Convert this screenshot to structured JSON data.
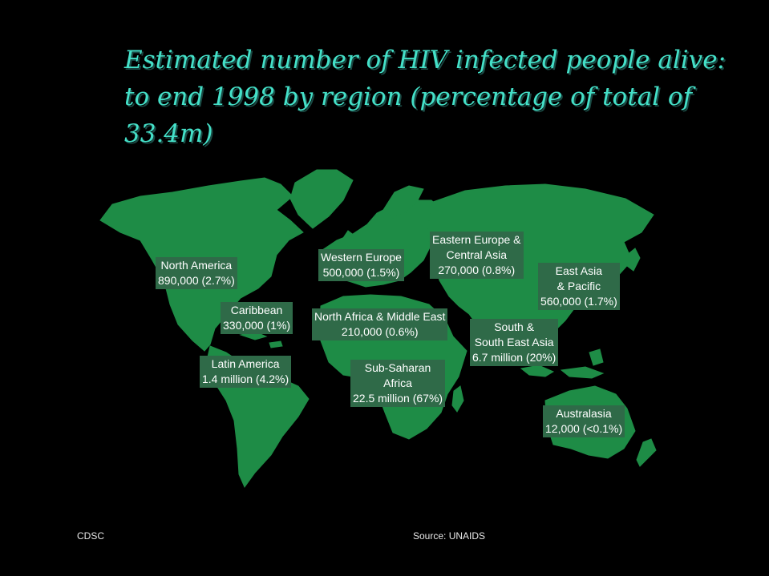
{
  "title": {
    "line1": "Estimated number of HIV infected people alive:",
    "line2": "to end 1998 by region (percentage of total of",
    "line3": "33.4m)"
  },
  "colors": {
    "land": "#1e8c46",
    "title": "#44e0c8",
    "label_bg": "#2f6a48",
    "background": "#000000"
  },
  "regions": {
    "north_america": {
      "name": "North America",
      "value": "890,000 (2.7%)"
    },
    "caribbean": {
      "name": "Caribbean",
      "value": "330,000 (1%)"
    },
    "latin_america": {
      "name": "Latin America",
      "value": "1.4 million (4.2%)"
    },
    "western_europe": {
      "name": "Western Europe",
      "value": "500,000 (1.5%)"
    },
    "eastern_europe": {
      "name_line1": "Eastern Europe &",
      "name_line2": "Central Asia",
      "value": "270,000 (0.8%)"
    },
    "north_africa": {
      "name": "North Africa & Middle East",
      "value": "210,000 (0.6%)"
    },
    "sub_saharan": {
      "name_line1": "Sub-Saharan",
      "name_line2": "Africa",
      "value": "22.5 million (67%)"
    },
    "east_asia": {
      "name_line1": "East Asia",
      "name_line2": "& Pacific",
      "value": "560,000 (1.7%)"
    },
    "south_asia": {
      "name_line1": "South &",
      "name_line2": "South East Asia",
      "value": "6.7 million (20%)"
    },
    "australasia": {
      "name": "Australasia",
      "value": "12,000 (<0.1%)"
    }
  },
  "footer": {
    "left": "CDSC",
    "source": "Source: UNAIDS"
  }
}
